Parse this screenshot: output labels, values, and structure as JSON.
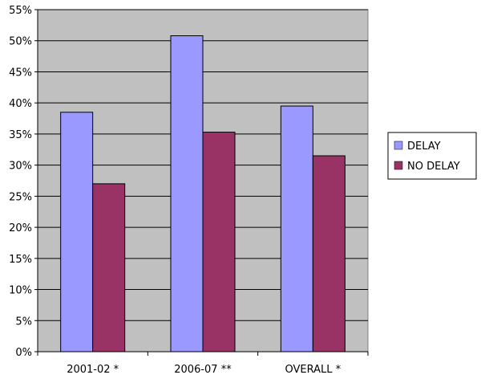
{
  "chart_data": {
    "type": "bar",
    "title": "",
    "xlabel": "",
    "ylabel": "",
    "categories": [
      "2001-02 *",
      "2006-07 **",
      "OVERALL *"
    ],
    "series": [
      {
        "name": "DELAY",
        "values": [
          38.5,
          50.8,
          39.5
        ],
        "color": "#9999ff"
      },
      {
        "name": "NO DELAY",
        "values": [
          27.0,
          35.3,
          31.5
        ],
        "color": "#993366"
      }
    ],
    "ylim": [
      0,
      55
    ],
    "y_ticks": [
      0,
      5,
      10,
      15,
      20,
      25,
      30,
      35,
      40,
      45,
      50,
      55
    ],
    "y_tick_labels": [
      "0%",
      "5%",
      "10%",
      "15%",
      "20%",
      "25%",
      "30%",
      "35%",
      "40%",
      "45%",
      "50%",
      "55%"
    ],
    "grid": true,
    "plot_background": "#c0c0c0",
    "legend_position": "right"
  }
}
